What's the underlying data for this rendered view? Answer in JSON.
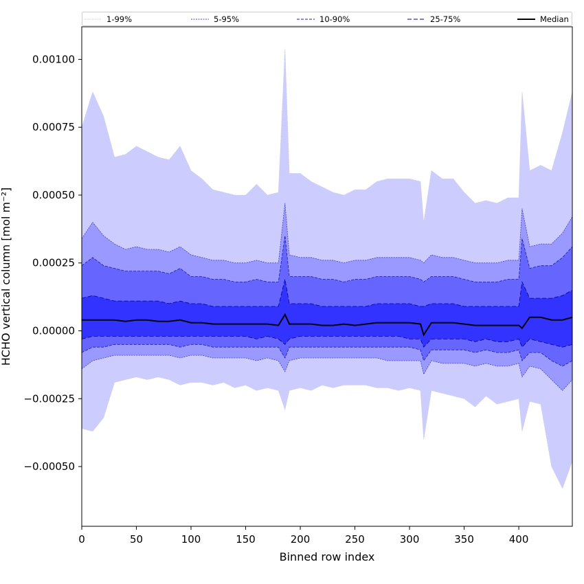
{
  "chart_data": {
    "type": "area",
    "xlabel": "Binned row index",
    "ylabel": "HCHO vertical column [mol m⁻²]",
    "xlim": [
      0,
      449
    ],
    "ylim": [
      -0.00072,
      0.00112
    ],
    "xticks": [
      {
        "value": 0,
        "label": "0"
      },
      {
        "value": 50,
        "label": "50"
      },
      {
        "value": 100,
        "label": "100"
      },
      {
        "value": 150,
        "label": "150"
      },
      {
        "value": 200,
        "label": "200"
      },
      {
        "value": 250,
        "label": "250"
      },
      {
        "value": 300,
        "label": "300"
      },
      {
        "value": 350,
        "label": "350"
      },
      {
        "value": 400,
        "label": "400"
      }
    ],
    "yticks": [
      {
        "value": 0.001,
        "label": "0.00100"
      },
      {
        "value": 0.00075,
        "label": "0.00075"
      },
      {
        "value": 0.0005,
        "label": "0.00050"
      },
      {
        "value": 0.00025,
        "label": "0.00025"
      },
      {
        "value": 0.0,
        "label": "0.00000"
      },
      {
        "value": -0.00025,
        "label": "−0.00025"
      },
      {
        "value": -0.0005,
        "label": "−0.00050"
      }
    ],
    "legend_position": "top, spanning full width",
    "bands": [
      {
        "name": "1-99%",
        "fill": "#ccccff",
        "line": "#c8c8dc",
        "dash": "1,1",
        "x": [
          0,
          10,
          20,
          30,
          40,
          50,
          60,
          70,
          80,
          90,
          100,
          110,
          120,
          130,
          140,
          150,
          160,
          170,
          180,
          186,
          190,
          200,
          210,
          220,
          230,
          240,
          250,
          260,
          270,
          280,
          290,
          300,
          310,
          313,
          320,
          330,
          340,
          350,
          360,
          370,
          380,
          390,
          400,
          403,
          410,
          420,
          430,
          440,
          449
        ],
        "lower": [
          -0.00036,
          -0.00037,
          -0.00032,
          -0.00019,
          -0.00018,
          -0.00017,
          -0.00018,
          -0.00017,
          -0.00018,
          -0.0002,
          -0.00019,
          -0.00019,
          -0.0002,
          -0.00019,
          -0.00021,
          -0.0002,
          -0.00022,
          -0.00021,
          -0.00022,
          -0.00029,
          -0.00022,
          -0.00021,
          -0.00022,
          -0.0002,
          -0.00021,
          -0.0002,
          -0.0002,
          -0.0002,
          -0.00021,
          -0.00021,
          -0.00022,
          -0.00021,
          -0.00022,
          -0.0004,
          -0.00022,
          -0.00023,
          -0.00024,
          -0.00025,
          -0.00028,
          -0.00024,
          -0.00027,
          -0.00026,
          -0.00025,
          -0.00037,
          -0.00026,
          -0.00027,
          -0.0005,
          -0.00058,
          -0.00048
        ],
        "upper": [
          0.00075,
          0.00088,
          0.00079,
          0.00064,
          0.00065,
          0.00068,
          0.00066,
          0.00064,
          0.00063,
          0.00068,
          0.00059,
          0.00056,
          0.00052,
          0.00051,
          0.0005,
          0.0005,
          0.00054,
          0.0005,
          0.00051,
          0.00104,
          0.00058,
          0.00058,
          0.00055,
          0.00053,
          0.00051,
          0.0005,
          0.00052,
          0.00052,
          0.00055,
          0.00056,
          0.00056,
          0.00056,
          0.00055,
          0.0004,
          0.00059,
          0.00056,
          0.00056,
          0.00051,
          0.00047,
          0.00048,
          0.00047,
          0.00049,
          0.00049,
          0.00088,
          0.00059,
          0.00061,
          0.00059,
          0.00073,
          0.00088
        ]
      },
      {
        "name": "5-95%",
        "fill": "#9999ff",
        "line": "#4040c0",
        "dash": "2,1.5",
        "x": [
          0,
          10,
          20,
          30,
          40,
          50,
          60,
          70,
          80,
          90,
          100,
          110,
          120,
          130,
          140,
          150,
          160,
          170,
          180,
          186,
          190,
          200,
          210,
          220,
          230,
          240,
          250,
          260,
          270,
          280,
          290,
          300,
          310,
          313,
          320,
          330,
          340,
          350,
          360,
          370,
          380,
          390,
          400,
          403,
          410,
          420,
          430,
          440,
          449
        ],
        "lower": [
          -0.00014,
          -0.00011,
          -0.0001,
          -9e-05,
          -9e-05,
          -9e-05,
          -9e-05,
          -9e-05,
          -9e-05,
          -0.0001,
          -9e-05,
          -9e-05,
          -0.0001,
          -0.0001,
          -0.0001,
          -0.0001,
          -0.00011,
          -0.0001,
          -0.00011,
          -0.00015,
          -0.00011,
          -0.0001,
          -0.0001,
          -0.0001,
          -0.0001,
          -0.0001,
          -0.0001,
          -0.0001,
          -0.0001,
          -0.00011,
          -0.00011,
          -0.00011,
          -0.00011,
          -0.00016,
          -0.00011,
          -0.00012,
          -0.00012,
          -0.00012,
          -0.00013,
          -0.00012,
          -0.00013,
          -0.00013,
          -0.00012,
          -0.00017,
          -0.00013,
          -0.00014,
          -0.00018,
          -0.00022,
          -0.00018
        ],
        "upper": [
          0.00034,
          0.0004,
          0.00035,
          0.00032,
          0.0003,
          0.00031,
          0.0003,
          0.0003,
          0.00029,
          0.00031,
          0.00028,
          0.00027,
          0.00026,
          0.00026,
          0.00025,
          0.00025,
          0.00026,
          0.00025,
          0.00025,
          0.00047,
          0.00028,
          0.00027,
          0.00027,
          0.00026,
          0.00026,
          0.00025,
          0.00026,
          0.00026,
          0.00027,
          0.00027,
          0.00027,
          0.00027,
          0.00026,
          0.00025,
          0.00028,
          0.00027,
          0.00027,
          0.00026,
          0.00025,
          0.00025,
          0.00025,
          0.00026,
          0.00026,
          0.00045,
          0.00031,
          0.00032,
          0.00032,
          0.00036,
          0.00042
        ]
      },
      {
        "name": "10-90%",
        "fill": "#6666ff",
        "line": "#1a1aa0",
        "dash": "4,2",
        "x": [
          0,
          10,
          20,
          30,
          40,
          50,
          60,
          70,
          80,
          90,
          100,
          110,
          120,
          130,
          140,
          150,
          160,
          170,
          180,
          186,
          190,
          200,
          210,
          220,
          230,
          240,
          250,
          260,
          270,
          280,
          290,
          300,
          310,
          313,
          320,
          330,
          340,
          350,
          360,
          370,
          380,
          390,
          400,
          403,
          410,
          420,
          430,
          440,
          449
        ],
        "lower": [
          -8e-05,
          -6e-05,
          -6e-05,
          -5e-05,
          -5e-05,
          -5e-05,
          -5e-05,
          -5e-05,
          -5e-05,
          -6e-05,
          -5e-05,
          -5e-05,
          -6e-05,
          -6e-05,
          -6e-05,
          -6e-05,
          -6e-05,
          -6e-05,
          -6e-05,
          -0.0001,
          -6e-05,
          -6e-05,
          -6e-05,
          -6e-05,
          -6e-05,
          -6e-05,
          -6e-05,
          -6e-05,
          -6e-05,
          -6e-05,
          -6e-05,
          -6e-05,
          -7e-05,
          -0.00011,
          -7e-05,
          -7e-05,
          -7e-05,
          -7e-05,
          -8e-05,
          -7e-05,
          -8e-05,
          -8e-05,
          -7e-05,
          -0.00011,
          -8e-05,
          -8e-05,
          -0.00011,
          -0.00013,
          -0.00011
        ],
        "upper": [
          0.00024,
          0.00027,
          0.00024,
          0.00023,
          0.00022,
          0.00022,
          0.00022,
          0.00022,
          0.00021,
          0.00023,
          0.0002,
          0.0002,
          0.00019,
          0.00019,
          0.00018,
          0.00018,
          0.00019,
          0.00018,
          0.00018,
          0.00035,
          0.0002,
          0.0002,
          0.0002,
          0.00019,
          0.00019,
          0.00018,
          0.00019,
          0.00019,
          0.0002,
          0.0002,
          0.0002,
          0.0002,
          0.00019,
          0.00018,
          0.0002,
          0.0002,
          0.0002,
          0.00019,
          0.00018,
          0.00018,
          0.00018,
          0.00019,
          0.00019,
          0.00034,
          0.00023,
          0.00024,
          0.00024,
          0.00027,
          0.00031
        ]
      },
      {
        "name": "25-75%",
        "fill": "#3333ff",
        "line": "#000080",
        "dash": "6,3",
        "x": [
          0,
          10,
          20,
          30,
          40,
          50,
          60,
          70,
          80,
          90,
          100,
          110,
          120,
          130,
          140,
          150,
          160,
          170,
          180,
          186,
          190,
          200,
          210,
          220,
          230,
          240,
          250,
          260,
          270,
          280,
          290,
          300,
          310,
          313,
          320,
          330,
          340,
          350,
          360,
          370,
          380,
          390,
          400,
          403,
          410,
          420,
          430,
          440,
          449
        ],
        "lower": [
          -3e-05,
          -2e-05,
          -2e-05,
          -2e-05,
          -2e-05,
          -2e-05,
          -2e-05,
          -2e-05,
          -2e-05,
          -2e-05,
          -2e-05,
          -2e-05,
          -2e-05,
          -2e-05,
          -2e-05,
          -2e-05,
          -3e-05,
          -2e-05,
          -3e-05,
          -5e-05,
          -3e-05,
          -2e-05,
          -2e-05,
          -2e-05,
          -2e-05,
          -2e-05,
          -2e-05,
          -2e-05,
          -2e-05,
          -2e-05,
          -2e-05,
          -3e-05,
          -3e-05,
          -6e-05,
          -3e-05,
          -3e-05,
          -3e-05,
          -3e-05,
          -4e-05,
          -3e-05,
          -4e-05,
          -4e-05,
          -3e-05,
          -6e-05,
          -3e-05,
          -4e-05,
          -5e-05,
          -6e-05,
          -5e-05
        ],
        "upper": [
          0.00012,
          0.00013,
          0.00012,
          0.00011,
          0.00011,
          0.00011,
          0.00011,
          0.00011,
          0.0001,
          0.00011,
          0.0001,
          0.0001,
          9e-05,
          9e-05,
          9e-05,
          9e-05,
          9e-05,
          9e-05,
          9e-05,
          0.00019,
          0.0001,
          0.0001,
          0.0001,
          9e-05,
          9e-05,
          9e-05,
          9e-05,
          9e-05,
          0.0001,
          0.0001,
          0.0001,
          0.0001,
          9e-05,
          9e-05,
          0.0001,
          0.0001,
          0.0001,
          9e-05,
          9e-05,
          9e-05,
          9e-05,
          9e-05,
          9e-05,
          0.00018,
          0.00012,
          0.00012,
          0.00012,
          0.00013,
          0.00015
        ]
      }
    ],
    "median": {
      "name": "Median",
      "color": "#000000",
      "x": [
        0,
        10,
        20,
        30,
        40,
        50,
        60,
        70,
        80,
        90,
        100,
        110,
        120,
        130,
        140,
        150,
        160,
        170,
        180,
        186,
        190,
        200,
        210,
        220,
        230,
        240,
        250,
        260,
        270,
        280,
        290,
        300,
        310,
        313,
        320,
        330,
        340,
        350,
        360,
        370,
        380,
        390,
        400,
        403,
        410,
        420,
        430,
        440,
        449
      ],
      "values": [
        4e-05,
        4e-05,
        4e-05,
        4e-05,
        3.5e-05,
        4e-05,
        4e-05,
        3.5e-05,
        3.5e-05,
        4e-05,
        3e-05,
        3e-05,
        2.5e-05,
        2.5e-05,
        2.5e-05,
        2.5e-05,
        2.5e-05,
        2.5e-05,
        2e-05,
        6e-05,
        2.5e-05,
        2.5e-05,
        2.5e-05,
        2e-05,
        2e-05,
        2.5e-05,
        2e-05,
        2.5e-05,
        3e-05,
        3e-05,
        3e-05,
        3e-05,
        2.5e-05,
        -1.5e-05,
        3e-05,
        3e-05,
        3e-05,
        2.5e-05,
        2e-05,
        2e-05,
        2e-05,
        2e-05,
        2e-05,
        1e-05,
        5e-05,
        5e-05,
        4e-05,
        4e-05,
        5e-05
      ]
    },
    "legend": [
      {
        "label": "1-99%",
        "key": "band0"
      },
      {
        "label": "5-95%",
        "key": "band1"
      },
      {
        "label": "10-90%",
        "key": "band2"
      },
      {
        "label": "25-75%",
        "key": "band3"
      },
      {
        "label": "Median",
        "key": "median"
      }
    ]
  }
}
